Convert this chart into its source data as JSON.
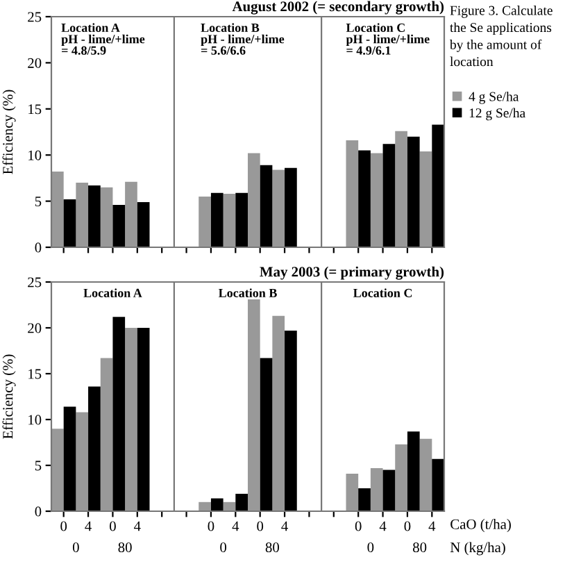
{
  "chart_data": [
    {
      "type": "bar",
      "title": "August 2002 (= secondary growth)",
      "ylabel": "Efficiency (%)",
      "categories": [
        null,
        null,
        null,
        null,
        null,
        null,
        null,
        null,
        null,
        null,
        null,
        null,
        null,
        null,
        null,
        null
      ],
      "ylim": [
        0,
        25
      ],
      "yticks": [
        0,
        5,
        10,
        15,
        20,
        25
      ],
      "tick_labels": "y",
      "grid": false,
      "legend": "right",
      "annotations": [
        "Location A\npH - lime/+lime\n= 4.8/5.9",
        "Location B\npH - lime/+lime\n= 5.6/6.6",
        "Location C\npH - lime/+lime\n= 4.9/6.1",
        "Figure 3. Calculate\nthe Se applications\nby the amount of\nlocation"
      ],
      "series": [
        {
          "name": "4 g Se/ha",
          "color": "#999999",
          "values": [
            8.2,
            7.0,
            6.5,
            7.1,
            null,
            null,
            5.5,
            5.8,
            10.2,
            8.4,
            null,
            null,
            11.6,
            10.2,
            12.6,
            10.4
          ]
        },
        {
          "name": "12 g Se/ha",
          "color": "#000000",
          "values": [
            5.2,
            6.7,
            4.6,
            4.9,
            null,
            null,
            5.9,
            5.9,
            8.9,
            8.6,
            null,
            null,
            10.5,
            11.2,
            12.0,
            13.3
          ]
        }
      ]
    },
    {
      "type": "bar",
      "title": "May 2003 (= primary growth)",
      "ylabel": "Efficiency (%)",
      "categories": [
        "0",
        "4",
        "0",
        "4",
        null,
        null,
        "0",
        "4",
        "0",
        "4",
        null,
        null,
        "0",
        "4",
        "0",
        "4"
      ],
      "ylim": [
        0,
        25
      ],
      "yticks": [
        0,
        5,
        10,
        15,
        20,
        25
      ],
      "grid": false,
      "annotations": [
        "Location A",
        "Location B",
        "Location C",
        "0",
        "80",
        "0",
        "80",
        "0",
        "80",
        "CaO (t/ha)",
        "N (kg/ha)"
      ],
      "series": [
        {
          "color": "#999999",
          "values": [
            9.0,
            10.8,
            16.7,
            20.0,
            null,
            null,
            1.0,
            1.0,
            23.1,
            21.3,
            null,
            null,
            4.1,
            4.7,
            7.3,
            7.9
          ]
        },
        {
          "color": "#000000",
          "values": [
            11.4,
            13.6,
            21.2,
            20.0,
            null,
            null,
            1.4,
            1.9,
            16.7,
            19.7,
            null,
            null,
            2.5,
            4.5,
            8.7,
            5.7
          ]
        }
      ]
    }
  ]
}
